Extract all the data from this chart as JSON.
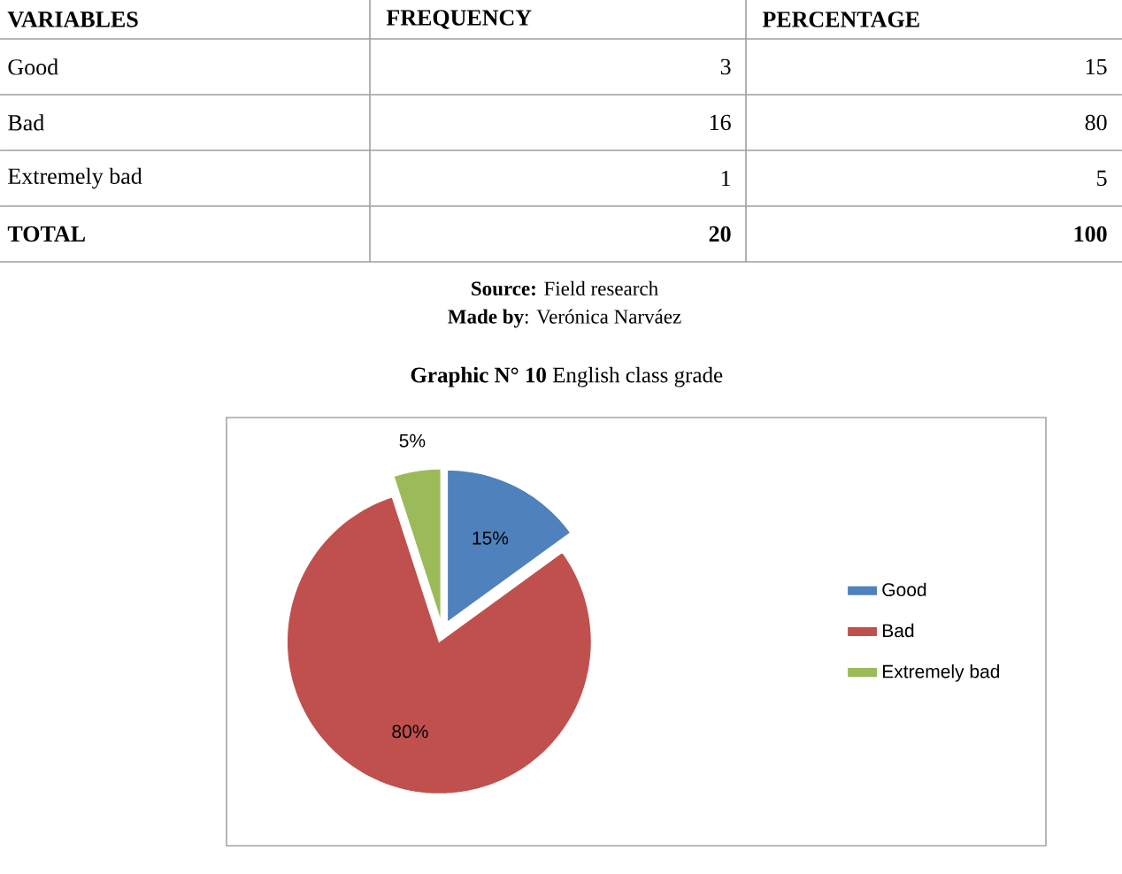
{
  "chart_data": [
    {
      "type": "other",
      "xlabel": "VARIABLES",
      "categories": [
        "Good",
        "Bad",
        "Extremely bad",
        "TOTAL"
      ],
      "series": [
        {
          "name": "FREQUENCY",
          "values": [
            3,
            16,
            1,
            20
          ]
        },
        {
          "name": "PERCENTAGE",
          "values": [
            15,
            80,
            5,
            100
          ]
        }
      ],
      "data_labels": true,
      "annotations": [
        "**Source:** Field research",
        "**Made by**: Verónica Narváez"
      ]
    },
    {
      "type": "pie",
      "title": "**Graphic N° 10** English class grade",
      "categories": [
        "Good",
        "Bad",
        "Extremely bad"
      ],
      "values": [
        15,
        80,
        5
      ],
      "colors": [
        "#4f81bd",
        "#c0504d",
        "#9bbb59"
      ],
      "value_labels": [
        "15%",
        "80%",
        "5%"
      ],
      "legend": "right"
    }
  ]
}
